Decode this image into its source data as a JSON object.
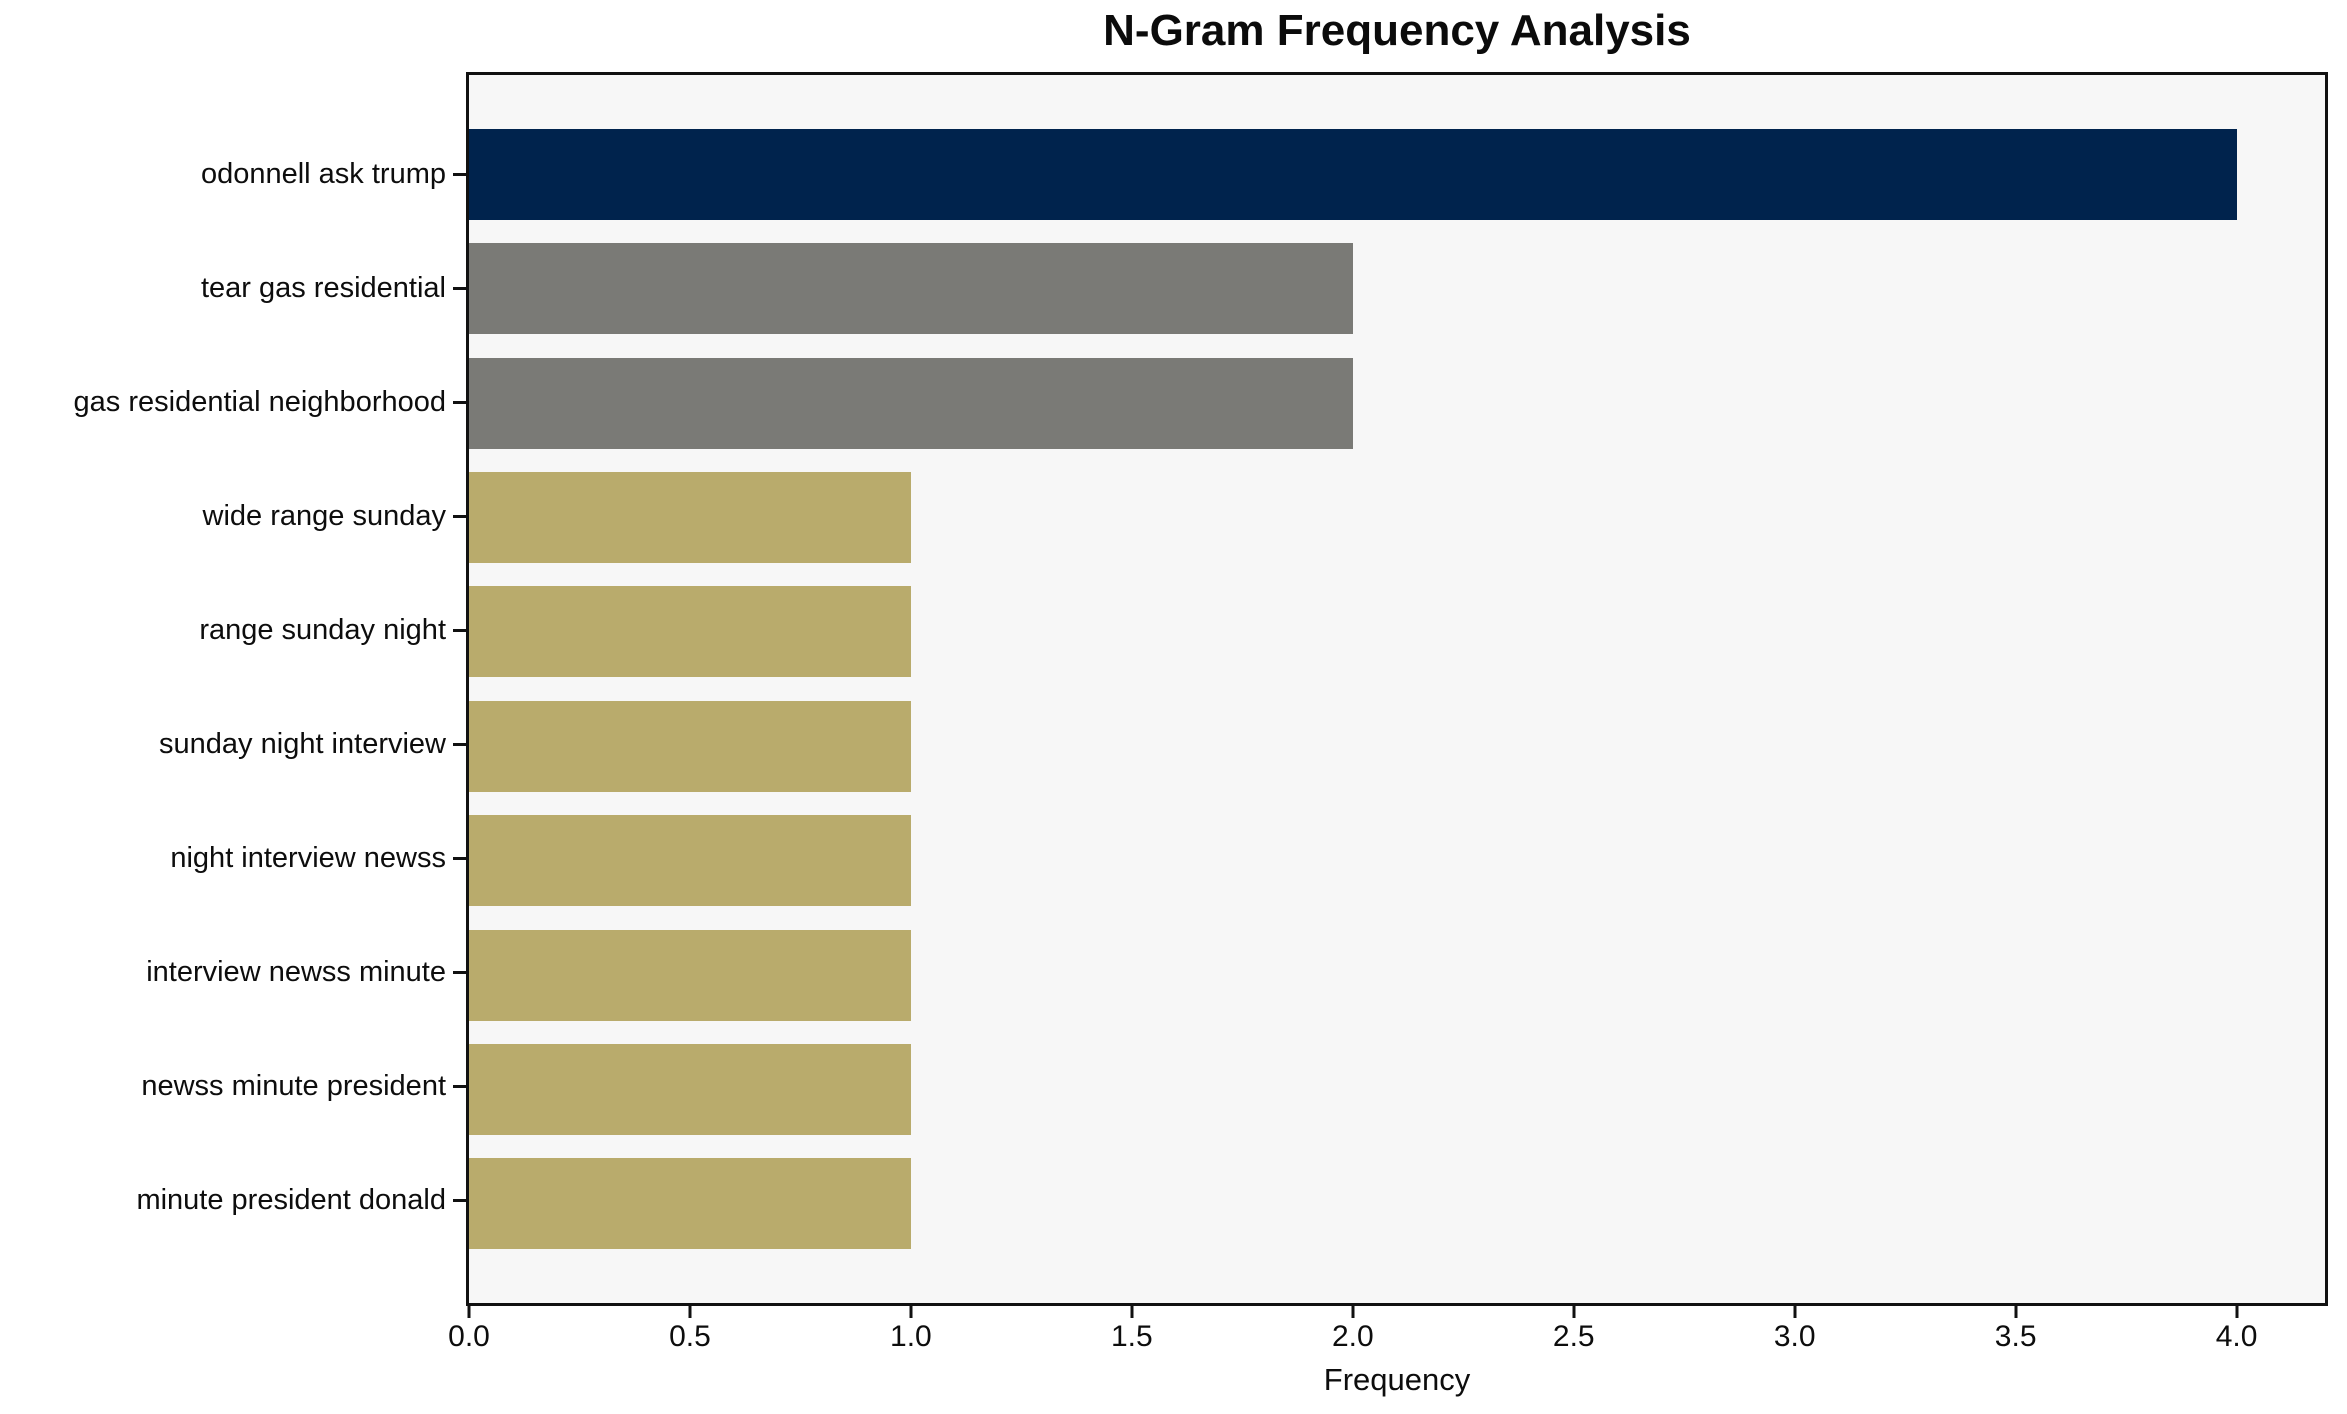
{
  "colors": {
    "figure_background": "#ffffff",
    "plot_background": "#f7f7f7",
    "spine": "#111111",
    "text": "#0d0d0d",
    "bar_navy": "#00234d",
    "bar_gray": "#7a7a76",
    "bar_khaki": "#b9ab6c"
  },
  "chart_data": {
    "type": "bar",
    "orientation": "horizontal",
    "title": "N-Gram Frequency Analysis",
    "xlabel": "Frequency",
    "ylabel": "",
    "categories": [
      "odonnell ask trump",
      "tear gas residential",
      "gas residential neighborhood",
      "wide range sunday",
      "range sunday night",
      "sunday night interview",
      "night interview newss",
      "interview newss minute",
      "newss minute president",
      "minute president donald"
    ],
    "values": [
      4,
      2,
      2,
      1,
      1,
      1,
      1,
      1,
      1,
      1
    ],
    "bar_colors": [
      "#00234d",
      "#7a7a76",
      "#7a7a76",
      "#b9ab6c",
      "#b9ab6c",
      "#b9ab6c",
      "#b9ab6c",
      "#b9ab6c",
      "#b9ab6c",
      "#b9ab6c"
    ],
    "xlim": [
      0,
      4.2
    ],
    "x_tick_values": [
      0,
      0.5,
      1.0,
      1.5,
      2.0,
      2.5,
      3.0,
      3.5,
      4.0
    ],
    "x_tick_labels": [
      "0.0",
      "0.5",
      "1.0",
      "1.5",
      "2.0",
      "2.5",
      "3.0",
      "3.5",
      "4.0"
    ],
    "grid": false,
    "legend": "none"
  }
}
